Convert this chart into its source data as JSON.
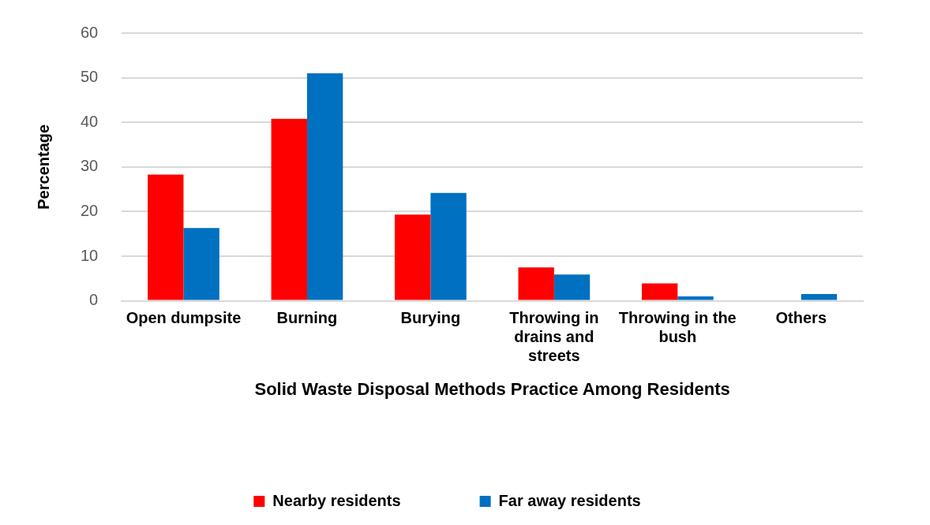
{
  "chart_data": {
    "type": "bar",
    "categories": [
      "Open dumpsite",
      "Burning",
      "Burying",
      "Throwing in drains and streets",
      "Throwing in the bush",
      "Others"
    ],
    "series": [
      {
        "name": "Nearby residents",
        "color": "#ff0000",
        "values": [
          28.3,
          40.8,
          19.3,
          7.5,
          3.9,
          0
        ]
      },
      {
        "name": "Far away residents",
        "color": "#0070c0",
        "values": [
          16.3,
          51,
          24.2,
          5.9,
          1.0,
          1.5
        ]
      }
    ],
    "xlabel": "Solid Waste Disposal Methods Practice Among Residents",
    "ylabel": "Percentage",
    "ylim": [
      0,
      60
    ],
    "yticks": [
      0,
      10,
      20,
      30,
      40,
      50,
      60
    ],
    "grid": "y",
    "legend": "bottom"
  }
}
